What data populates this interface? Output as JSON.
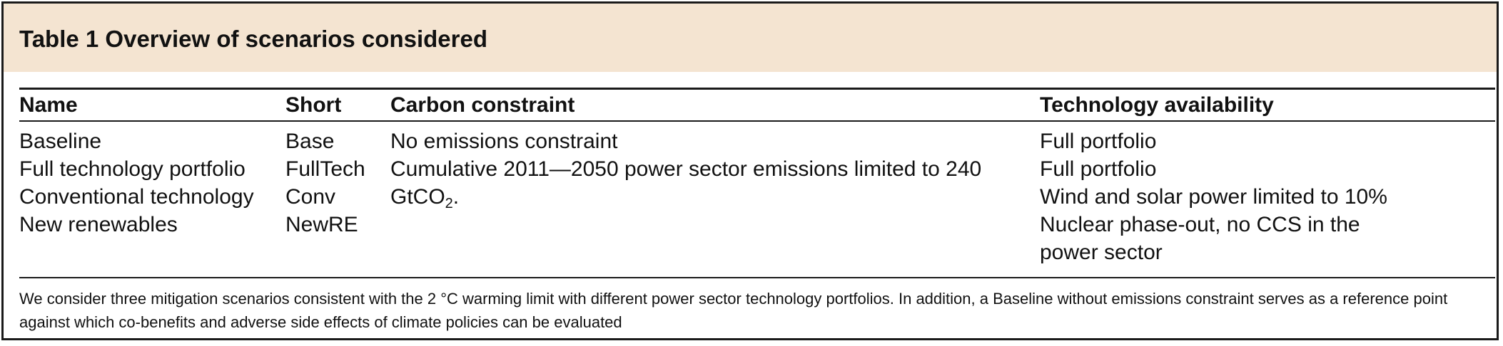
{
  "table": {
    "title": "Table 1 Overview of scenarios considered",
    "headers": {
      "name": "Name",
      "short": "Short",
      "carbon": "Carbon constraint",
      "technology": "Technology availability"
    },
    "rows": [
      {
        "name": "Baseline",
        "short": "Base",
        "technology": "Full portfolio"
      },
      {
        "name": "Full technology portfolio",
        "short": "FullTech",
        "technology": "Full portfolio"
      },
      {
        "name": "Conventional technology",
        "short": "Conv",
        "technology": "Wind and solar power limited to 10%"
      },
      {
        "name": "New renewables",
        "short": "NewRE",
        "technology": "Nuclear phase-out, no CCS in the"
      }
    ],
    "technology_continuation": "power sector",
    "carbon_lines": {
      "baseline": "No emissions constraint",
      "mitigation_line1": "Cumulative 2011—2050 power sector emissions limited to 240",
      "mitigation_line2_prefix": "GtCO",
      "mitigation_line2_subscript": "2",
      "mitigation_line2_suffix": "."
    },
    "footnote": "We consider three mitigation scenarios consistent with the 2 °C warming limit with different power sector technology portfolios. In addition, a Baseline without emissions constraint serves as a reference point against which co-benefits and adverse side effects of climate policies can be evaluated"
  }
}
